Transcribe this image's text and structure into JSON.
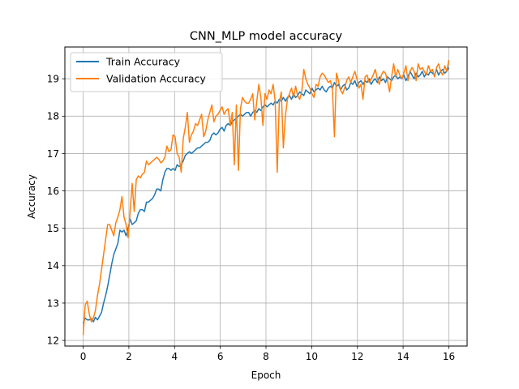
{
  "chart_data": {
    "type": "line",
    "title": "CNN_MLP model accuracy",
    "xlabel": "Epoch",
    "ylabel": "Accuracy",
    "xlim": [
      -0.8,
      16.8
    ],
    "ylim": [
      11.85,
      19.85
    ],
    "xticks": [
      0,
      2,
      4,
      6,
      8,
      10,
      12,
      14,
      16
    ],
    "yticks": [
      12,
      13,
      14,
      15,
      16,
      17,
      18,
      19
    ],
    "grid": true,
    "legend_position": "upper-left",
    "x_start": 0,
    "x_end": 16,
    "series": [
      {
        "name": "Train Accuracy",
        "color": "#1f77b4",
        "values": [
          12.45,
          12.6,
          12.55,
          12.55,
          12.58,
          12.5,
          12.62,
          12.55,
          12.65,
          12.75,
          13.0,
          13.2,
          13.45,
          13.75,
          14.05,
          14.3,
          14.45,
          14.6,
          14.95,
          14.9,
          14.95,
          14.8,
          15.0,
          15.25,
          15.1,
          15.15,
          15.2,
          15.4,
          15.5,
          15.5,
          15.45,
          15.7,
          15.7,
          15.75,
          15.8,
          15.9,
          16.05,
          16.05,
          16.0,
          16.3,
          16.5,
          16.6,
          16.6,
          16.55,
          16.6,
          16.55,
          16.7,
          16.65,
          16.7,
          16.8,
          16.95,
          17.0,
          17.05,
          17.0,
          17.05,
          17.1,
          17.15,
          17.15,
          17.2,
          17.25,
          17.3,
          17.3,
          17.35,
          17.5,
          17.55,
          17.5,
          17.55,
          17.65,
          17.7,
          17.6,
          17.75,
          17.8,
          17.75,
          17.85,
          17.9,
          17.95,
          18.0,
          18.05,
          18.0,
          18.05,
          18.1,
          18.1,
          18.0,
          18.1,
          18.15,
          18.1,
          18.2,
          18.15,
          18.25,
          18.3,
          18.25,
          18.3,
          18.35,
          18.3,
          18.4,
          18.35,
          18.45,
          18.4,
          18.5,
          18.4,
          18.5,
          18.55,
          18.45,
          18.6,
          18.5,
          18.55,
          18.65,
          18.6,
          18.55,
          18.7,
          18.65,
          18.6,
          18.75,
          18.65,
          18.7,
          18.75,
          18.7,
          18.8,
          18.7,
          18.65,
          18.75,
          18.8,
          18.75,
          18.9,
          18.8,
          18.85,
          18.7,
          18.8,
          18.85,
          18.7,
          18.75,
          18.9,
          18.85,
          18.95,
          18.8,
          18.9,
          18.95,
          18.85,
          18.95,
          18.9,
          19.0,
          18.85,
          18.95,
          19.0,
          18.9,
          19.05,
          18.95,
          19.0,
          18.9,
          19.05,
          19.0,
          18.95,
          19.05,
          19.1,
          19.0,
          19.05,
          19.0,
          19.1,
          18.95,
          19.05,
          19.2,
          19.1,
          19.0,
          19.15,
          19.05,
          19.1,
          19.2,
          19.05,
          19.15,
          19.1,
          19.2,
          19.15,
          19.1,
          19.25,
          19.1,
          19.2,
          19.25,
          19.15,
          19.2,
          19.3
        ]
      },
      {
        "name": "Validation Accuracy",
        "color": "#ff7f0e",
        "values": [
          12.15,
          12.95,
          13.05,
          12.7,
          12.5,
          12.6,
          12.8,
          13.2,
          13.5,
          13.9,
          14.3,
          14.7,
          15.1,
          15.1,
          14.95,
          14.8,
          15.15,
          15.3,
          15.5,
          15.85,
          15.3,
          15.1,
          14.75,
          15.45,
          16.2,
          15.45,
          16.3,
          16.4,
          16.35,
          16.45,
          16.5,
          16.8,
          16.7,
          16.75,
          16.8,
          16.85,
          16.9,
          16.85,
          16.75,
          16.8,
          16.9,
          17.2,
          17.05,
          17.1,
          17.5,
          17.45,
          17.0,
          16.9,
          16.5,
          17.4,
          17.7,
          18.1,
          17.3,
          17.5,
          17.6,
          17.8,
          17.75,
          17.9,
          18.05,
          17.45,
          17.6,
          17.9,
          18.1,
          18.3,
          17.85,
          18.0,
          18.05,
          18.15,
          18.25,
          18.05,
          18.15,
          18.2,
          17.75,
          18.1,
          16.7,
          18.3,
          16.55,
          18.2,
          18.5,
          18.4,
          18.35,
          18.35,
          18.45,
          18.6,
          17.9,
          18.4,
          18.85,
          18.5,
          17.75,
          18.6,
          18.45,
          18.7,
          18.6,
          18.85,
          18.4,
          16.5,
          18.35,
          18.65,
          17.15,
          18.0,
          18.45,
          18.6,
          18.75,
          18.5,
          18.8,
          18.55,
          18.45,
          18.65,
          19.25,
          19.0,
          18.85,
          18.75,
          18.6,
          18.5,
          18.85,
          18.8,
          19.05,
          19.15,
          19.1,
          19.0,
          18.9,
          18.95,
          18.75,
          17.45,
          19.15,
          18.95,
          18.7,
          18.6,
          18.75,
          18.95,
          19.05,
          18.9,
          19.05,
          19.2,
          19.0,
          18.75,
          18.85,
          18.45,
          19.05,
          19.1,
          18.9,
          19.0,
          19.1,
          19.25,
          19.0,
          18.85,
          19.1,
          19.2,
          19.15,
          18.95,
          18.65,
          19.05,
          19.4,
          19.05,
          19.25,
          19.1,
          19.0,
          19.15,
          19.35,
          18.95,
          19.2,
          19.3,
          19.2,
          18.95,
          19.4,
          19.25,
          19.3,
          19.2,
          19.1,
          19.35,
          19.2,
          19.25,
          19.05,
          19.3,
          19.4,
          19.2,
          19.1,
          19.35,
          19.2,
          19.5
        ]
      }
    ]
  }
}
